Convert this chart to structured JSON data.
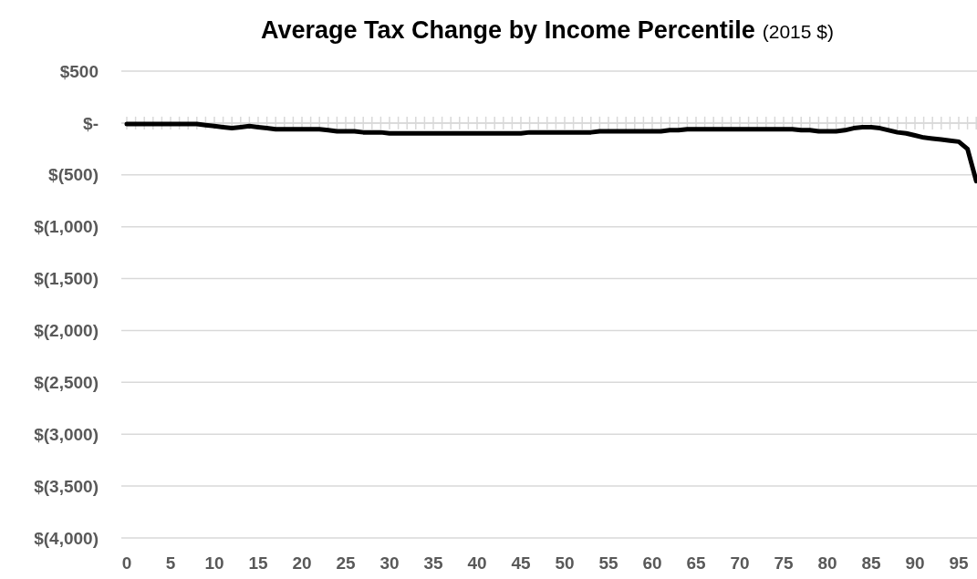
{
  "chart_data": {
    "type": "line",
    "title": "Average  Tax Change by Income Percentile",
    "subtitle": "(2015 $)",
    "categories": [
      "0",
      null,
      null,
      null,
      null,
      "5",
      null,
      null,
      null,
      null,
      "10",
      null,
      null,
      null,
      null,
      "15",
      null,
      null,
      null,
      null,
      "20",
      null,
      null,
      null,
      null,
      "25",
      null,
      null,
      null,
      null,
      "30",
      null,
      null,
      null,
      null,
      "35",
      null,
      null,
      null,
      null,
      "40",
      null,
      null,
      null,
      null,
      "45",
      null,
      null,
      null,
      null,
      "50",
      null,
      null,
      null,
      null,
      "55",
      null,
      null,
      null,
      null,
      "60",
      null,
      null,
      null,
      null,
      "65",
      null,
      null,
      null,
      null,
      "70",
      null,
      null,
      null,
      null,
      "75",
      null,
      null,
      null,
      null,
      "80",
      null,
      null,
      null,
      null,
      "85",
      null,
      null,
      null,
      null,
      "90",
      null,
      null,
      null,
      null,
      "95",
      null,
      null
    ],
    "series": [
      {
        "color": "#000000",
        "values": [
          -10,
          -10,
          -10,
          -10,
          -10,
          -10,
          -10,
          -10,
          -10,
          -20,
          -30,
          -40,
          -50,
          -40,
          -30,
          -40,
          -50,
          -60,
          -60,
          -60,
          -60,
          -60,
          -60,
          -70,
          -80,
          -80,
          -80,
          -90,
          -90,
          -90,
          -100,
          -100,
          -100,
          -100,
          -100,
          -100,
          -100,
          -100,
          -100,
          -100,
          -100,
          -100,
          -100,
          -100,
          -100,
          -100,
          -90,
          -90,
          -90,
          -90,
          -90,
          -90,
          -90,
          -90,
          -80,
          -80,
          -80,
          -80,
          -80,
          -80,
          -80,
          -80,
          -70,
          -70,
          -60,
          -60,
          -60,
          -60,
          -60,
          -60,
          -60,
          -60,
          -60,
          -60,
          -60,
          -60,
          -60,
          -70,
          -70,
          -80,
          -80,
          -80,
          -70,
          -50,
          -40,
          -40,
          -50,
          -70,
          -90,
          -100,
          -120,
          -140,
          -150,
          -160,
          -170,
          -180,
          -250,
          -560
        ]
      }
    ],
    "ylim": [
      -4000,
      500
    ],
    "yticks": [
      {
        "value": 500,
        "label": "$500"
      },
      {
        "value": 0,
        "label": "$-"
      },
      {
        "value": -500,
        "label": "$(500)"
      },
      {
        "value": -1000,
        "label": "$(1,000)"
      },
      {
        "value": -1500,
        "label": "$(1,500)"
      },
      {
        "value": -2000,
        "label": "$(2,000)"
      },
      {
        "value": -2500,
        "label": "$(2,500)"
      },
      {
        "value": -3000,
        "label": "$(3,000)"
      },
      {
        "value": -3500,
        "label": "$(3,500)"
      },
      {
        "value": -4000,
        "label": "$(4,000)"
      }
    ],
    "grid": "y",
    "marker": "none",
    "line_style": "solid"
  }
}
